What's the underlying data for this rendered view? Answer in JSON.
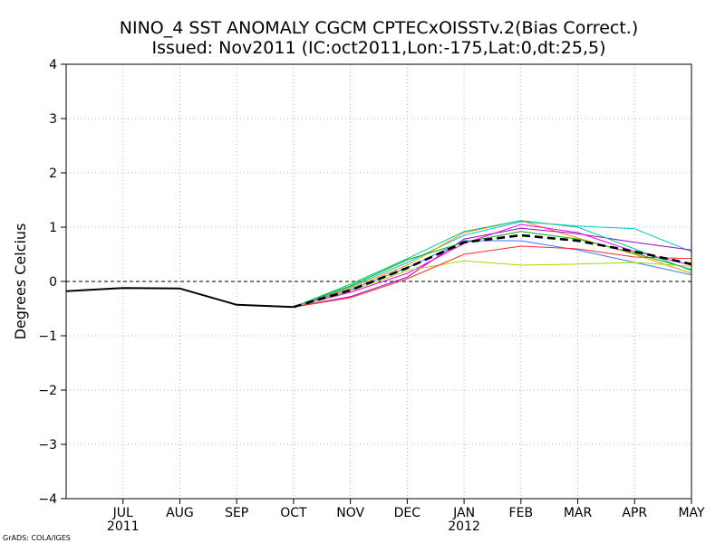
{
  "chart_data": {
    "type": "line",
    "title_line1": "NINO_4 SST ANOMALY CGCM CPTECxOISSTv.2(Bias Correct.)",
    "title_line2": "Issued:  Nov2011 (IC:oct2011,Lon:-175,Lat:0,dt:25,5)",
    "ylabel": "Degrees Celcius",
    "credit": "GrADS: COLA/IGES",
    "ylim": [
      -4,
      4
    ],
    "yticks": [
      4,
      3,
      2,
      1,
      0,
      -1,
      -2,
      -3,
      -4
    ],
    "yticks_display": [
      "4",
      "3",
      "2",
      "1",
      "0",
      "−1",
      "−2",
      "−3",
      "−4"
    ],
    "xlim": [
      0,
      11
    ],
    "x_ticks": [
      {
        "x": 1,
        "label": "JUL",
        "year": "2011"
      },
      {
        "x": 2,
        "label": "AUG",
        "year": ""
      },
      {
        "x": 3,
        "label": "SEP",
        "year": ""
      },
      {
        "x": 4,
        "label": "OCT",
        "year": ""
      },
      {
        "x": 5,
        "label": "NOV",
        "year": ""
      },
      {
        "x": 6,
        "label": "DEC",
        "year": ""
      },
      {
        "x": 7,
        "label": "JAN",
        "year": "2012"
      },
      {
        "x": 8,
        "label": "FEB",
        "year": ""
      },
      {
        "x": 9,
        "label": "MAR",
        "year": ""
      },
      {
        "x": 10,
        "label": "APR",
        "year": ""
      },
      {
        "x": 11,
        "label": "MAY",
        "year": ""
      }
    ],
    "grid": true,
    "zero_line": true,
    "observed": {
      "name": "observed",
      "color": "#000000",
      "x": [
        0,
        1,
        2,
        3,
        4
      ],
      "values": [
        -0.18,
        -0.12,
        -0.13,
        -0.43,
        -0.47
      ]
    },
    "members": [
      {
        "name": "member-1",
        "color": "#00c8c8",
        "x": [
          4,
          5,
          6,
          7,
          8,
          9,
          10,
          11
        ],
        "values": [
          -0.47,
          -0.1,
          0.35,
          0.85,
          1.1,
          1.02,
          0.97,
          0.55
        ]
      },
      {
        "name": "member-2",
        "color": "#ff8c00",
        "x": [
          4,
          5,
          6,
          7,
          8,
          9,
          10,
          11
        ],
        "values": [
          -0.47,
          -0.12,
          0.3,
          0.9,
          1.12,
          0.8,
          0.5,
          0.15
        ]
      },
      {
        "name": "member-3",
        "color": "#a000c8",
        "x": [
          4,
          5,
          6,
          7,
          8,
          9,
          10,
          11
        ],
        "values": [
          -0.47,
          -0.28,
          0.08,
          0.78,
          0.98,
          0.88,
          0.72,
          0.58
        ]
      },
      {
        "name": "member-4",
        "color": "#ff00ff",
        "x": [
          4,
          5,
          6,
          7,
          8,
          9,
          10,
          11
        ],
        "values": [
          -0.47,
          -0.2,
          0.15,
          0.7,
          1.05,
          0.9,
          0.55,
          0.3
        ]
      },
      {
        "name": "member-5",
        "color": "#3c78ff",
        "x": [
          4,
          5,
          6,
          7,
          8,
          9,
          10,
          11
        ],
        "values": [
          -0.47,
          -0.15,
          0.25,
          0.75,
          0.75,
          0.58,
          0.35,
          0.12
        ]
      },
      {
        "name": "member-6",
        "color": "#00b400",
        "x": [
          4,
          5,
          6,
          7,
          8,
          9,
          10,
          11
        ],
        "values": [
          -0.47,
          -0.08,
          0.4,
          0.72,
          0.92,
          0.78,
          0.52,
          0.22
        ]
      },
      {
        "name": "member-7",
        "color": "#a0dc00",
        "x": [
          4,
          5,
          6,
          7,
          8,
          9,
          10,
          11
        ],
        "values": [
          -0.47,
          -0.18,
          0.2,
          0.38,
          0.3,
          0.32,
          0.35,
          0.28
        ]
      },
      {
        "name": "member-8",
        "color": "#ff2828",
        "x": [
          4,
          5,
          6,
          7,
          8,
          9,
          10,
          11
        ],
        "values": [
          -0.47,
          -0.3,
          0.05,
          0.5,
          0.65,
          0.6,
          0.45,
          0.42
        ]
      },
      {
        "name": "member-9",
        "color": "#00c896",
        "x": [
          4,
          5,
          6,
          7,
          8,
          9,
          10,
          11
        ],
        "values": [
          -0.47,
          -0.05,
          0.42,
          0.92,
          1.12,
          1.0,
          0.6,
          0.2
        ]
      }
    ],
    "ensemble_mean": {
      "name": "ensemble-mean",
      "color": "#000000",
      "dashed": true,
      "x": [
        4,
        5,
        6,
        7,
        8,
        9,
        10,
        11
      ],
      "values": [
        -0.47,
        -0.16,
        0.25,
        0.72,
        0.85,
        0.75,
        0.55,
        0.32
      ]
    }
  }
}
